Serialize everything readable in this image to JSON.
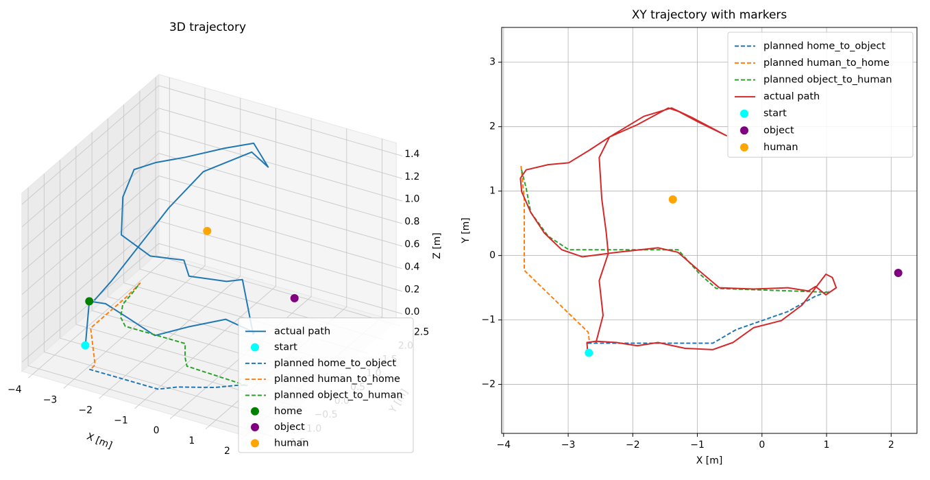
{
  "chart_data": [
    {
      "type": "line3d",
      "title": "3D trajectory",
      "xlabel": "X [m]",
      "ylabel": "Y [m]",
      "zlabel": "Z [m]",
      "xlim": [
        -4.3,
        2.4
      ],
      "ylim": [
        -1.7,
        2.6
      ],
      "zlim": [
        -0.08,
        1.5
      ],
      "xticks": [
        {
          "value": -4,
          "label": "−4"
        },
        {
          "value": -3,
          "label": "−3"
        },
        {
          "value": -2,
          "label": "−2"
        },
        {
          "value": -1,
          "label": "−1"
        },
        0,
        1,
        2
      ],
      "yticks": [
        {
          "value": -1.5,
          "label": "−1.5"
        },
        {
          "value": -1,
          "label": "−1.0"
        },
        {
          "value": -0.5,
          "label": "−0.5"
        },
        {
          "value": 0,
          "label": "0.0"
        },
        0.5,
        {
          "value": 1,
          "label": "1.0"
        },
        1.5,
        {
          "value": 2,
          "label": "2.0"
        },
        2.5
      ],
      "zticks": [
        {
          "value": 0,
          "label": "0.0"
        },
        0.2,
        0.4,
        0.6,
        0.8,
        {
          "value": 1,
          "label": "1.0"
        },
        1.2,
        1.4
      ],
      "grid": true,
      "legend": "lower right",
      "series": [
        {
          "name": "actual path",
          "type": "line",
          "linestyle": "solid",
          "color": "#1f77b4",
          "x": [
            -2.7,
            -2.71,
            -2.25,
            -1.61,
            -0.76,
            -0.13,
            0.62,
            0.99,
            1.15,
            0.83,
            0.4,
            -0.66,
            -1.3,
            -2.25,
            -3.1,
            -3.58,
            -3.74,
            -3.31,
            -2.68,
            -1.93,
            -1.3,
            -0.55,
            -1.4,
            -2.36,
            -2.48,
            -2.38,
            -2.46,
            -2.57
          ],
          "y": [
            -1.48,
            -1.35,
            -1.35,
            -1.35,
            -1.46,
            -1.12,
            -0.77,
            -0.29,
            -0.5,
            -0.48,
            -0.5,
            -0.5,
            0.05,
            0.05,
            0.09,
            0.67,
            1.2,
            1.41,
            1.63,
            2.03,
            2.24,
            1.86,
            2.29,
            1.84,
            0.88,
            0.03,
            -0.93,
            -1.35
          ],
          "z": [
            0.25,
            0.6,
            0.62,
            0.55,
            0.5,
            0.55,
            0.6,
            0.4,
            0.45,
            0.9,
            0.85,
            0.8,
            0.75,
            0.7,
            0.8,
            0.95,
            1.05,
            1.1,
            1.15,
            1.2,
            1.25,
            1.2,
            1.15,
            1.0,
            0.9,
            0.85,
            0.7,
            0.62
          ]
        },
        {
          "name": "start",
          "type": "scatter",
          "color": "cyan",
          "x": [
            -2.68
          ],
          "y": [
            -1.51
          ],
          "z": [
            0.25
          ]
        },
        {
          "name": "planned home_to_object",
          "type": "line",
          "linestyle": "dashed",
          "color": "#1f77b4",
          "x": [
            -2.7,
            -0.76,
            -0.4,
            0.0,
            0.4,
            0.83,
            1.04
          ],
          "y": [
            -1.36,
            -1.36,
            -1.15,
            -1.01,
            -0.87,
            -0.63,
            -0.55
          ],
          "z": [
            0,
            0,
            0,
            0,
            0,
            0,
            0
          ]
        },
        {
          "name": "planned human_to_home",
          "type": "line",
          "linestyle": "dashed",
          "color": "#ff7f0e",
          "x": [
            -3.73,
            -3.68,
            -3.68,
            -2.69,
            -2.67
          ],
          "y": [
            1.39,
            0.88,
            -0.23,
            -1.19,
            -1.35
          ],
          "z": [
            0,
            0,
            0,
            0,
            0
          ]
        },
        {
          "name": "planned object_to_human",
          "type": "line",
          "linestyle": "dashed",
          "color": "#2ca02c",
          "x": [
            1.04,
            -0.71,
            -0.96,
            -1.3,
            -2.99,
            -3.31,
            -3.58,
            -3.65,
            -3.73
          ],
          "y": [
            -0.57,
            -0.51,
            -0.29,
            0.09,
            0.09,
            0.3,
            0.67,
            1.04,
            1.36
          ],
          "z": [
            0,
            0,
            0,
            0,
            0,
            0,
            0,
            0,
            0
          ]
        },
        {
          "name": "home",
          "type": "scatter",
          "color": "green",
          "x": [
            -2.71
          ],
          "y": [
            -1.35
          ],
          "z": [
            0.6
          ]
        },
        {
          "name": "object",
          "type": "scatter",
          "color": "purple",
          "x": [
            2.11
          ],
          "y": [
            -0.27
          ],
          "z": [
            0.8
          ]
        },
        {
          "name": "human",
          "type": "scatter",
          "color": "orange",
          "x": [
            -1.38
          ],
          "y": [
            0.87
          ],
          "z": [
            0.8
          ]
        }
      ]
    },
    {
      "type": "line",
      "title": "XY trajectory with markers",
      "xlabel": "X [m]",
      "ylabel": "Y [m]",
      "xlim": [
        -4.03,
        2.4
      ],
      "ylim": [
        -2.76,
        3.54
      ],
      "xticks": [
        {
          "value": -4,
          "label": "−4"
        },
        {
          "value": -3,
          "label": "−3"
        },
        {
          "value": -2,
          "label": "−2"
        },
        {
          "value": -1,
          "label": "−1"
        },
        0,
        1,
        2
      ],
      "yticks": [
        {
          "value": -2,
          "label": "−2"
        },
        {
          "value": -1,
          "label": "−1"
        },
        0,
        1,
        2,
        3
      ],
      "grid": true,
      "legend": "upper right",
      "series": [
        {
          "name": "planned home_to_object",
          "type": "line",
          "linestyle": "dashed",
          "color": "#1f77b4",
          "x": [
            -2.7,
            -0.76,
            -0.4,
            0.0,
            0.4,
            0.83,
            1.04
          ],
          "y": [
            -1.36,
            -1.36,
            -1.15,
            -1.01,
            -0.87,
            -0.63,
            -0.55
          ]
        },
        {
          "name": "planned human_to_home",
          "type": "line",
          "linestyle": "dashed",
          "color": "#ff7f0e",
          "x": [
            -3.73,
            -3.68,
            -3.68,
            -2.69,
            -2.67
          ],
          "y": [
            1.39,
            0.88,
            -0.23,
            -1.19,
            -1.35
          ]
        },
        {
          "name": "planned object_to_human",
          "type": "line",
          "linestyle": "dashed",
          "color": "#2ca02c",
          "x": [
            1.04,
            -0.71,
            -0.96,
            -1.3,
            -2.99,
            -3.31,
            -3.58,
            -3.65,
            -3.73
          ],
          "y": [
            -0.57,
            -0.51,
            -0.29,
            0.09,
            0.09,
            0.3,
            0.67,
            1.04,
            1.36
          ]
        },
        {
          "name": "actual path",
          "type": "line",
          "linestyle": "solid",
          "color": "#d62728",
          "x": [
            -2.7,
            -2.71,
            -2.57,
            -2.25,
            -1.93,
            -1.61,
            -1.19,
            -0.76,
            -0.45,
            -0.13,
            0.3,
            0.62,
            0.83,
            0.99,
            1.09,
            1.15,
            0.99,
            0.83,
            0.72,
            0.4,
            -0.13,
            -0.66,
            -0.98,
            -1.3,
            -1.61,
            -2.25,
            -2.78,
            -3.1,
            -3.37,
            -3.58,
            -3.72,
            -3.74,
            -3.65,
            -3.31,
            -2.99,
            -2.68,
            -2.36,
            -1.93,
            -1.45,
            -1.3,
            -0.98,
            -0.55,
            -1.08,
            -1.4,
            -1.83,
            -2.36,
            -2.52,
            -2.48,
            -2.41,
            -2.38,
            -2.52,
            -2.46,
            -2.57
          ],
          "y": [
            -1.48,
            -1.35,
            -1.33,
            -1.35,
            -1.4,
            -1.35,
            -1.44,
            -1.46,
            -1.35,
            -1.12,
            -1.01,
            -0.77,
            -0.5,
            -0.29,
            -0.34,
            -0.5,
            -0.61,
            -0.48,
            -0.55,
            -0.5,
            -0.52,
            -0.5,
            -0.23,
            0.05,
            0.12,
            0.05,
            -0.02,
            0.09,
            0.35,
            0.67,
            0.99,
            1.2,
            1.33,
            1.41,
            1.44,
            1.63,
            1.84,
            2.03,
            2.29,
            2.24,
            2.07,
            1.86,
            2.14,
            2.29,
            2.16,
            1.84,
            1.52,
            0.88,
            0.35,
            0.03,
            -0.39,
            -0.93,
            -1.35
          ]
        },
        {
          "name": "start",
          "type": "scatter",
          "color": "cyan",
          "x": [
            -2.68
          ],
          "y": [
            -1.51
          ]
        },
        {
          "name": "object",
          "type": "scatter",
          "color": "purple",
          "x": [
            2.11
          ],
          "y": [
            -0.27
          ]
        },
        {
          "name": "human",
          "type": "scatter",
          "color": "orange",
          "x": [
            -1.38
          ],
          "y": [
            0.87
          ]
        }
      ]
    }
  ]
}
